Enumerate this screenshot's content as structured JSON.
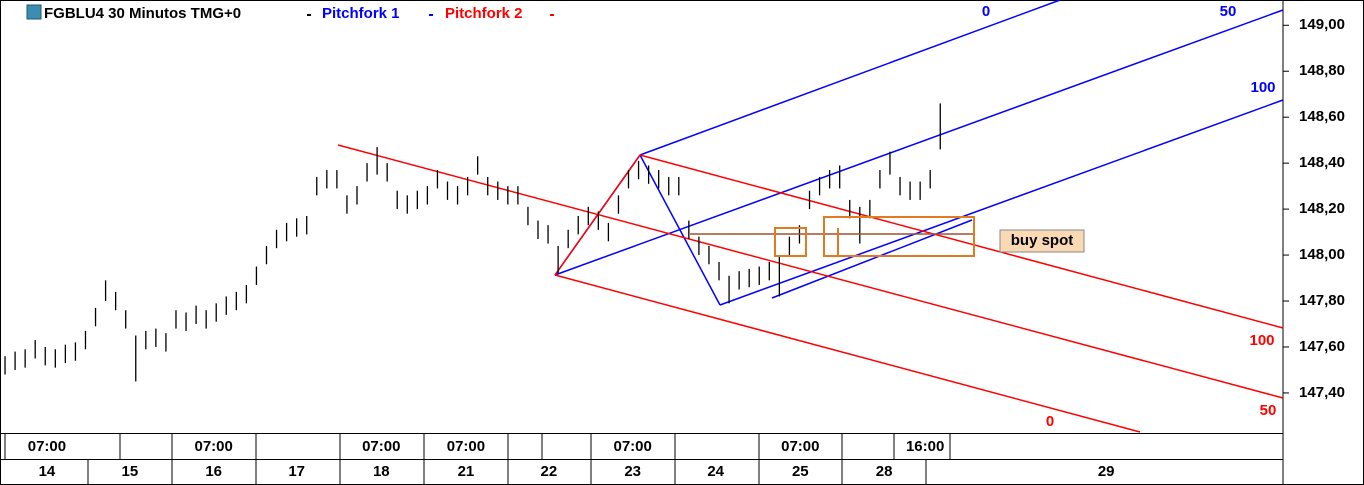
{
  "chart_data": {
    "type": "ohlc",
    "title": "FGBLU4 30 Minutos TMG+0",
    "xlim": [
      -0.06,
      15.25
    ],
    "ylim": [
      147.23,
      149.11
    ],
    "yticks": [
      {
        "value": 147.4,
        "label": "147,40"
      },
      {
        "value": 147.6,
        "label": "147,60"
      },
      {
        "value": 147.8,
        "label": "147,80"
      },
      {
        "value": 148,
        "label": "148,00"
      },
      {
        "value": 148.2,
        "label": "148,20"
      },
      {
        "value": 148.4,
        "label": "148,40"
      },
      {
        "value": 148.6,
        "label": "148,60"
      },
      {
        "value": 148.8,
        "label": "148,80"
      },
      {
        "value": 149,
        "label": "149,00"
      }
    ],
    "xticks": [
      {
        "value": 0.5,
        "label": "14"
      },
      {
        "value": 1.49,
        "label": "15"
      },
      {
        "value": 2.49,
        "label": "16"
      },
      {
        "value": 3.48,
        "label": "17"
      },
      {
        "value": 4.49,
        "label": "18"
      },
      {
        "value": 5.5,
        "label": "21"
      },
      {
        "value": 6.49,
        "label": "22"
      },
      {
        "value": 7.49,
        "label": "23"
      },
      {
        "value": 8.48,
        "label": "24"
      },
      {
        "value": 9.49,
        "label": "25"
      },
      {
        "value": 10.49,
        "label": "28"
      },
      {
        "value": 13.14,
        "label": "29"
      }
    ],
    "time_ticks": [
      {
        "value": 0.5,
        "label": "07:00"
      },
      {
        "value": 2.49,
        "label": "07:00"
      },
      {
        "value": 4.49,
        "label": "07:00"
      },
      {
        "value": 5.5,
        "label": "07:00"
      },
      {
        "value": 7.49,
        "label": "07:00"
      },
      {
        "value": 9.49,
        "label": "07:00"
      },
      {
        "value": 10.98,
        "label": "16:00"
      }
    ],
    "series": [
      {
        "color": "#000000",
        "x": [
          0,
          0.12,
          0.24,
          0.36,
          0.48,
          0.6,
          0.72,
          0.84,
          0.96,
          1.08,
          1.2,
          1.32,
          1.44,
          1.56,
          1.68,
          1.8,
          1.92,
          2.04,
          2.16,
          2.28,
          2.4,
          2.52,
          2.64,
          2.76,
          2.88,
          3,
          3.12,
          3.24,
          3.36,
          3.48,
          3.6,
          3.72,
          3.84,
          3.96,
          4.08,
          4.2,
          4.32,
          4.44,
          4.56,
          4.68,
          4.8,
          4.92,
          5.04,
          5.16,
          5.28,
          5.4,
          5.52,
          5.64,
          5.76,
          5.88,
          6,
          6.12,
          6.24,
          6.36,
          6.48,
          6.6,
          6.72,
          6.84,
          6.96,
          7.08,
          7.2,
          7.32,
          7.44,
          7.56,
          7.68,
          7.8,
          7.92,
          8.04,
          8.16,
          8.28,
          8.4,
          8.52,
          8.64,
          8.76,
          8.88,
          9,
          9.12,
          9.24,
          9.36,
          9.48,
          9.6,
          9.72,
          9.84,
          9.96,
          10.08,
          10.2,
          10.32,
          10.44,
          10.56,
          10.68,
          10.8,
          10.92,
          11.04,
          11.16
        ],
        "high": [
          147.56,
          147.58,
          147.59,
          147.63,
          147.6,
          147.59,
          147.61,
          147.62,
          147.67,
          147.77,
          147.89,
          147.84,
          147.76,
          147.65,
          147.67,
          147.68,
          147.66,
          147.76,
          147.75,
          147.78,
          147.76,
          147.79,
          147.82,
          147.84,
          147.87,
          147.95,
          148.04,
          148.11,
          148.14,
          148.16,
          148.17,
          148.34,
          148.37,
          148.37,
          148.26,
          148.3,
          148.4,
          148.47,
          148.4,
          148.28,
          148.26,
          148.28,
          148.3,
          148.37,
          148.32,
          148.3,
          148.34,
          148.43,
          148.34,
          148.32,
          148.3,
          148.3,
          148.21,
          148.15,
          148.13,
          148.04,
          148.11,
          148.17,
          148.21,
          148.19,
          148.14,
          148.26,
          148.37,
          148.41,
          148.39,
          148.37,
          148.34,
          148.34,
          148.15,
          148.08,
          148.04,
          147.97,
          147.91,
          147.93,
          147.94,
          147.95,
          147.97,
          148,
          148.08,
          148.13,
          148.28,
          148.34,
          148.37,
          148.39,
          148.24,
          148.21,
          148.24,
          148.37,
          148.45,
          148.34,
          148.32,
          148.32,
          148.37,
          148.66
        ],
        "low": [
          147.48,
          147.5,
          147.51,
          147.55,
          147.52,
          147.51,
          147.53,
          147.54,
          147.59,
          147.69,
          147.8,
          147.76,
          147.68,
          147.45,
          147.59,
          147.6,
          147.58,
          147.68,
          147.67,
          147.7,
          147.68,
          147.71,
          147.74,
          147.76,
          147.79,
          147.87,
          147.96,
          148.03,
          148.06,
          148.08,
          148.09,
          148.26,
          148.29,
          148.29,
          148.18,
          148.22,
          148.32,
          148.35,
          148.32,
          148.2,
          148.18,
          148.2,
          148.22,
          148.29,
          148.24,
          148.22,
          148.26,
          148.35,
          148.26,
          148.24,
          148.22,
          148.22,
          148.13,
          148.07,
          148.05,
          147.92,
          148.03,
          148.09,
          148.13,
          148.11,
          148.06,
          148.18,
          148.29,
          148.33,
          148.31,
          148.29,
          148.26,
          148.26,
          148.07,
          148,
          147.96,
          147.89,
          147.79,
          147.85,
          147.86,
          147.87,
          147.89,
          147.82,
          148,
          148.05,
          148.2,
          148.26,
          148.29,
          148.29,
          148.16,
          148.05,
          148.16,
          148.29,
          148.35,
          148.26,
          148.24,
          148.24,
          148.29,
          148.46
        ]
      }
    ],
    "pitchforks": [
      {
        "name": "Pitchfork 1",
        "color": "#0000ff",
        "levels": [
          "0",
          "50",
          "100"
        ]
      },
      {
        "name": "Pitchfork 2",
        "color": "#ff0000",
        "levels": [
          "100",
          "50",
          "0"
        ]
      }
    ],
    "annotation": "buy spot"
  }
}
